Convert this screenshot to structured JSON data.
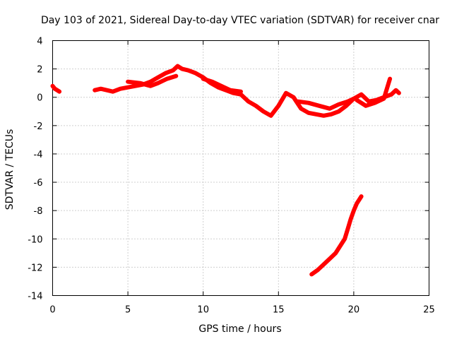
{
  "chart_data": {
    "type": "line",
    "title": "Day 103 of 2021, Sidereal Day-to-day VTEC variation (SDTVAR) for receiver cnar",
    "xlabel": "GPS time / hours",
    "ylabel": "SDTVAR / TECUs",
    "xlim": [
      0,
      25
    ],
    "ylim": [
      -14,
      4
    ],
    "xticks": [
      0,
      5,
      10,
      15,
      20,
      25
    ],
    "yticks": [
      -14,
      -12,
      -10,
      -8,
      -6,
      -4,
      -2,
      0,
      2,
      4
    ],
    "grid": true,
    "color": "#ff0000",
    "series": [
      {
        "name": "segment-1",
        "x": [
          0.0,
          0.15,
          0.3,
          0.45
        ],
        "y": [
          0.8,
          0.6,
          0.5,
          0.4
        ]
      },
      {
        "name": "segment-2",
        "x": [
          2.8,
          3.2,
          3.6,
          4.0,
          4.5,
          5.0,
          5.5,
          6.0,
          6.5,
          7.0,
          7.5,
          8.0,
          8.3,
          8.6,
          9.0,
          9.5,
          10.0,
          10.5,
          11.0,
          11.5,
          12.0,
          12.5,
          13.0,
          13.5,
          14.0,
          14.5,
          15.0,
          15.5,
          16.0,
          16.5,
          17.0,
          17.5,
          18.0,
          18.5,
          19.0,
          19.5,
          20.0,
          20.5,
          21.0,
          21.5,
          22.0,
          22.5,
          22.8,
          23.0
        ],
        "y": [
          0.5,
          0.6,
          0.5,
          0.4,
          0.6,
          0.7,
          0.8,
          0.9,
          1.1,
          1.4,
          1.7,
          1.9,
          2.2,
          2.0,
          1.9,
          1.7,
          1.4,
          1.0,
          0.7,
          0.5,
          0.3,
          0.2,
          -0.3,
          -0.6,
          -1.0,
          -1.3,
          -0.6,
          0.3,
          0.0,
          -0.8,
          -1.1,
          -1.2,
          -1.3,
          -1.2,
          -1.0,
          -0.6,
          -0.1,
          0.2,
          -0.3,
          -0.2,
          0.0,
          0.2,
          0.5,
          0.3
        ]
      },
      {
        "name": "segment-3",
        "x": [
          5.0,
          5.8,
          6.5,
          7.0,
          7.6,
          8.2
        ],
        "y": [
          1.1,
          1.0,
          0.8,
          1.0,
          1.3,
          1.5
        ]
      },
      {
        "name": "segment-4",
        "x": [
          10.0,
          10.6,
          11.2,
          11.8,
          12.5
        ],
        "y": [
          1.3,
          1.1,
          0.8,
          0.5,
          0.4
        ]
      },
      {
        "name": "segment-5",
        "x": [
          16.3,
          17.0,
          17.7,
          18.4,
          19.0,
          19.6,
          20.0
        ],
        "y": [
          -0.3,
          -0.4,
          -0.6,
          -0.8,
          -0.5,
          -0.3,
          -0.1
        ]
      },
      {
        "name": "segment-6",
        "x": [
          20.2,
          20.8,
          21.4,
          22.0,
          22.4
        ],
        "y": [
          -0.2,
          -0.6,
          -0.4,
          -0.1,
          1.3
        ]
      },
      {
        "name": "segment-7",
        "x": [
          17.2,
          17.6,
          18.0,
          18.4,
          18.8,
          19.1,
          19.4,
          19.6,
          19.8,
          20.0,
          20.2,
          20.5
        ],
        "y": [
          -12.5,
          -12.2,
          -11.8,
          -11.4,
          -11.0,
          -10.5,
          -10.0,
          -9.3,
          -8.6,
          -8.0,
          -7.5,
          -7.0
        ]
      }
    ]
  }
}
